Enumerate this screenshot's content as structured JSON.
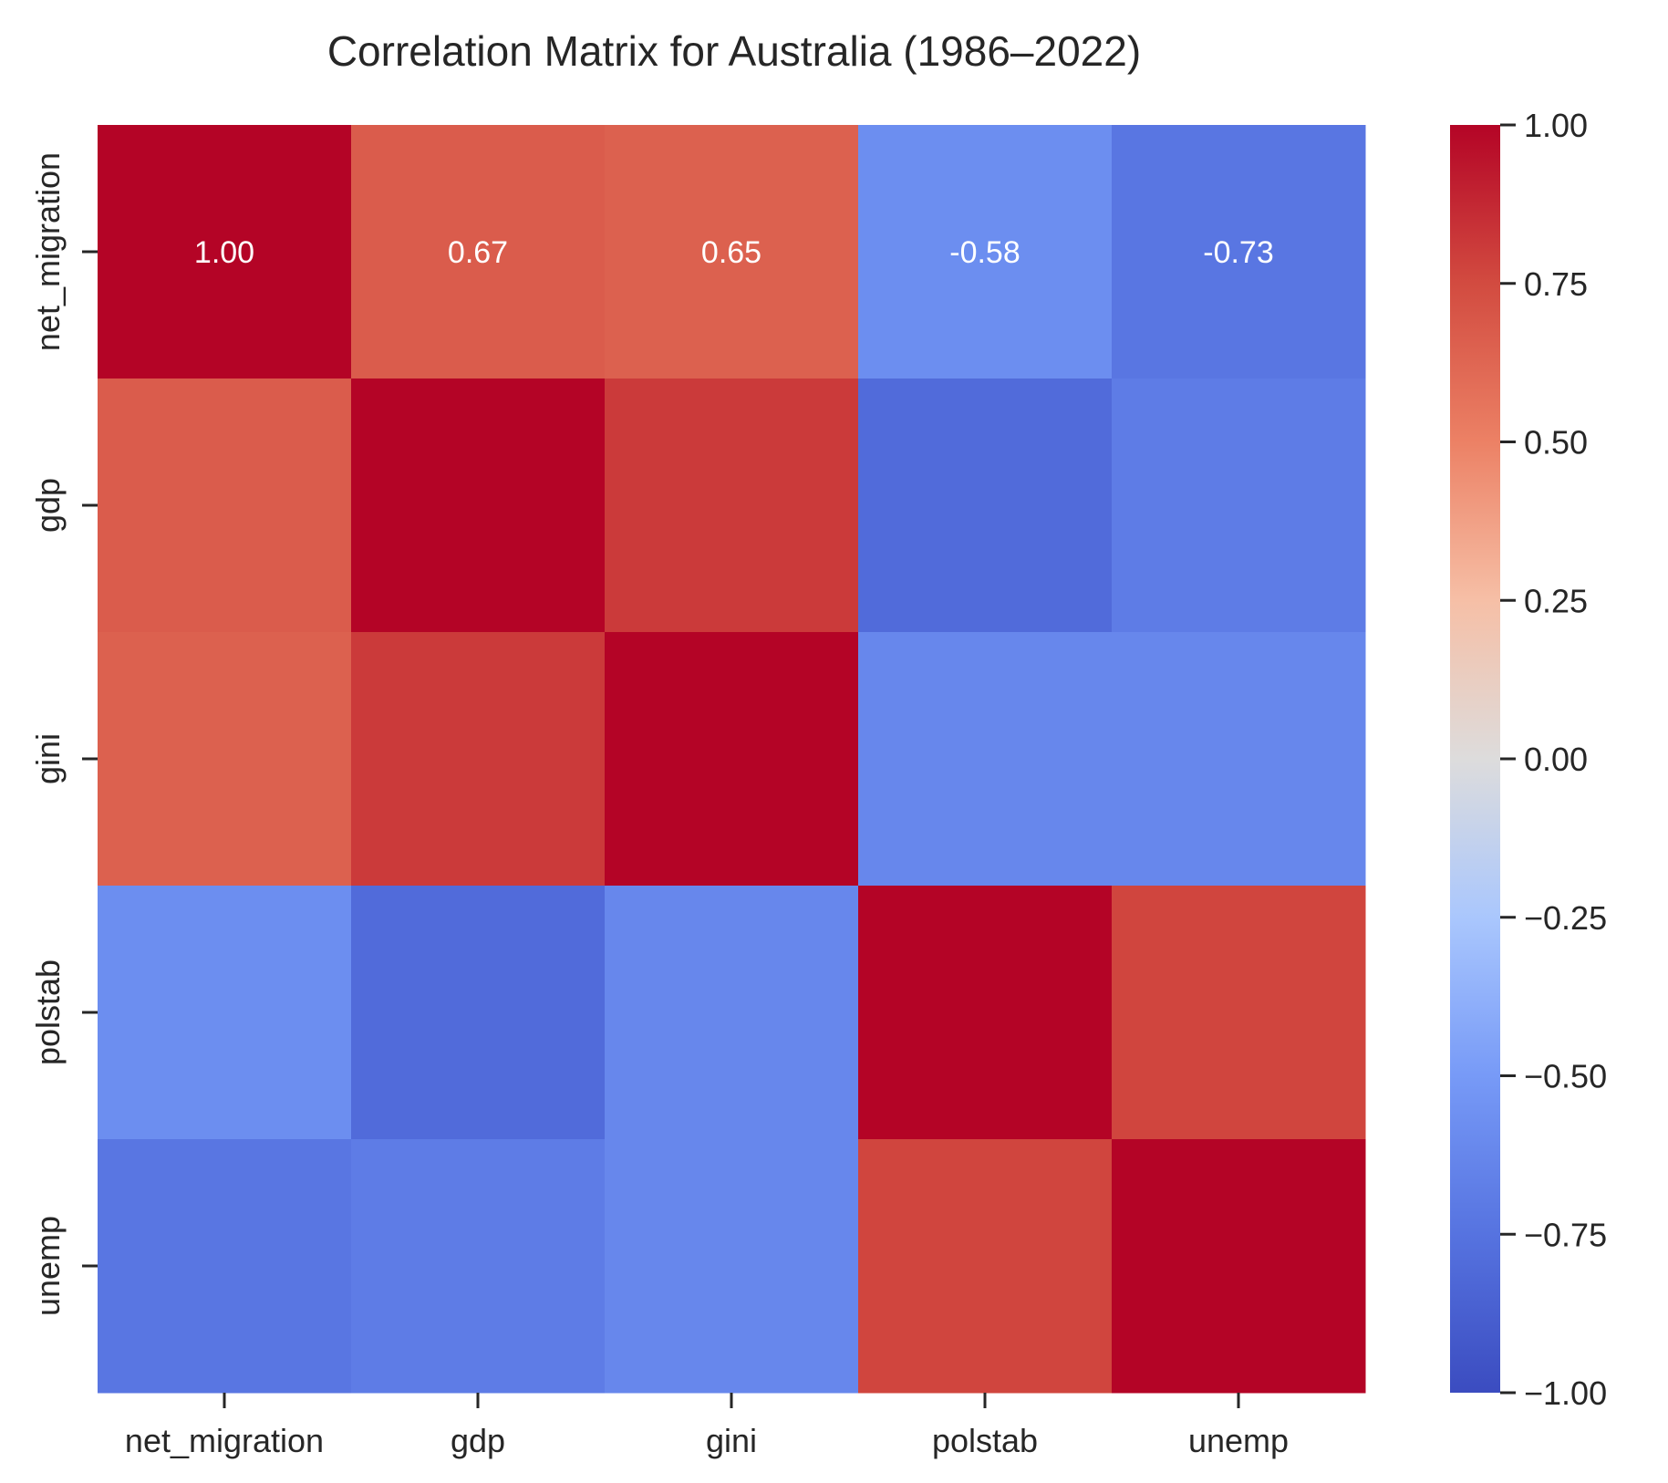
{
  "chart_data": {
    "type": "heatmap",
    "title": "Correlation Matrix for Australia (1986–2022)",
    "xlabel": "",
    "ylabel": "",
    "x_labels": [
      "net_migration",
      "gdp",
      "gini",
      "polstab",
      "unemp"
    ],
    "y_labels": [
      "net_migration",
      "gdp",
      "gini",
      "polstab",
      "unemp"
    ],
    "values": [
      [
        1.0,
        0.67,
        0.65,
        -0.58,
        -0.73
      ],
      [
        0.67,
        1.0,
        0.81,
        -0.8,
        -0.69
      ],
      [
        0.65,
        0.81,
        1.0,
        -0.62,
        -0.62
      ],
      [
        -0.58,
        -0.8,
        -0.62,
        1.0,
        0.77
      ],
      [
        -0.73,
        -0.69,
        -0.62,
        0.77,
        1.0
      ]
    ],
    "annotated_cells": [
      {
        "row": 0,
        "col": 0,
        "text": "1.00"
      },
      {
        "row": 0,
        "col": 1,
        "text": "0.67"
      },
      {
        "row": 0,
        "col": 2,
        "text": "0.65"
      },
      {
        "row": 0,
        "col": 3,
        "text": "-0.58"
      },
      {
        "row": 0,
        "col": 4,
        "text": "-0.73"
      }
    ],
    "colormap": "coolwarm",
    "vmin": -1.0,
    "vmax": 1.0,
    "colorbar_ticks": [
      "1.00",
      "0.75",
      "0.50",
      "0.25",
      "0.00",
      "−0.25",
      "−0.50",
      "−0.75",
      "−1.00"
    ],
    "colorbar_tick_values": [
      1.0,
      0.75,
      0.5,
      0.25,
      0.0,
      -0.25,
      -0.5,
      -0.75,
      -1.0
    ],
    "colors": {
      "cmap_stops": [
        "#3b4cc0",
        "#6788ee",
        "#9abbff",
        "#c9d7f0",
        "#dddddd",
        "#edd1c2",
        "#f7a889",
        "#e26952",
        "#b40426"
      ],
      "annotation_text": "#ffffff",
      "axis_text": "#262626"
    }
  }
}
